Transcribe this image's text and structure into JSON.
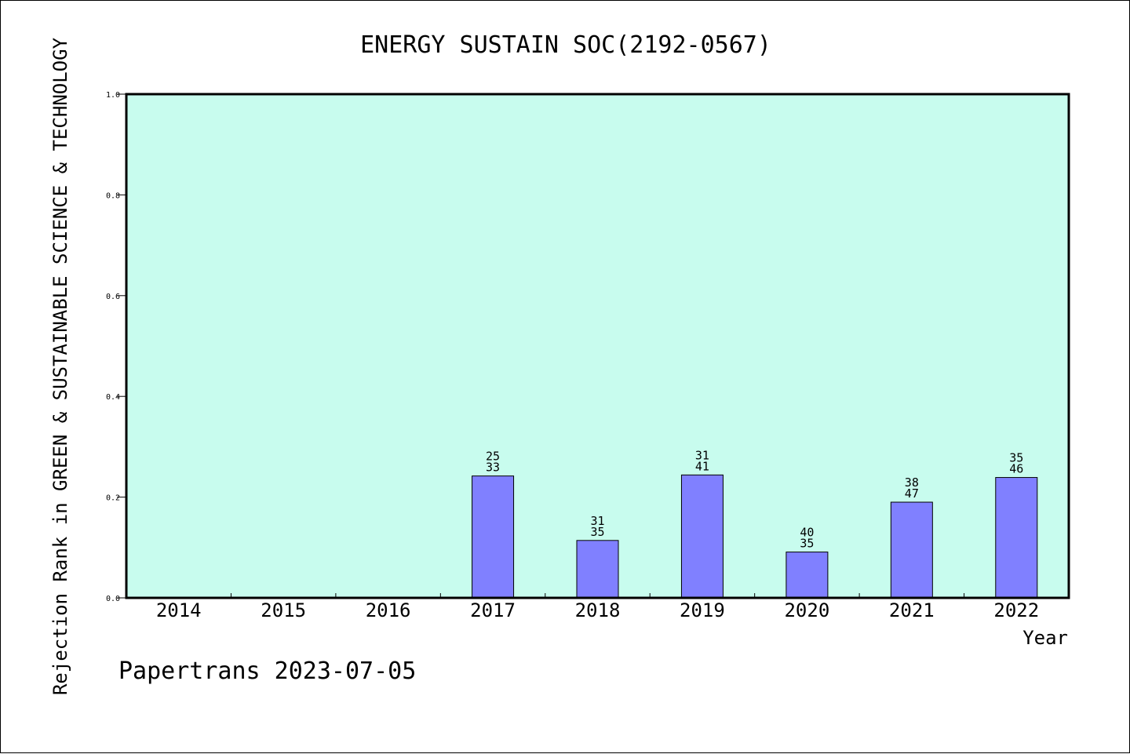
{
  "colors": {
    "plot_background": "#c8fcee",
    "bar_fill": "#8080ff",
    "bar_stroke": "#000000",
    "axis": "#000000"
  },
  "watermark": "Papertrans 2023-07-05",
  "chart_data": {
    "type": "bar",
    "title": "ENERGY SUSTAIN SOC(2192-0567)",
    "xlabel": "Year",
    "ylabel": "Rejection Rank in GREEN & SUSTAINABLE SCIENCE & TECHNOLOGY",
    "ylim": [
      0,
      1.0
    ],
    "yticks": [
      "0.0",
      "0.2",
      "0.4",
      "0.6",
      "0.8",
      "1.0"
    ],
    "grid": false,
    "categories": [
      "2014",
      "2015",
      "2016",
      "2017",
      "2018",
      "2019",
      "2020",
      "2021",
      "2022"
    ],
    "values": [
      null,
      null,
      null,
      0.242,
      0.114,
      0.244,
      0.091,
      0.19,
      0.239
    ],
    "bar_labels": [
      null,
      null,
      null,
      [
        "25",
        "33"
      ],
      [
        "31",
        "35"
      ],
      [
        "31",
        "41"
      ],
      [
        "40",
        "35"
      ],
      [
        "38",
        "47"
      ],
      [
        "35",
        "46"
      ]
    ]
  }
}
